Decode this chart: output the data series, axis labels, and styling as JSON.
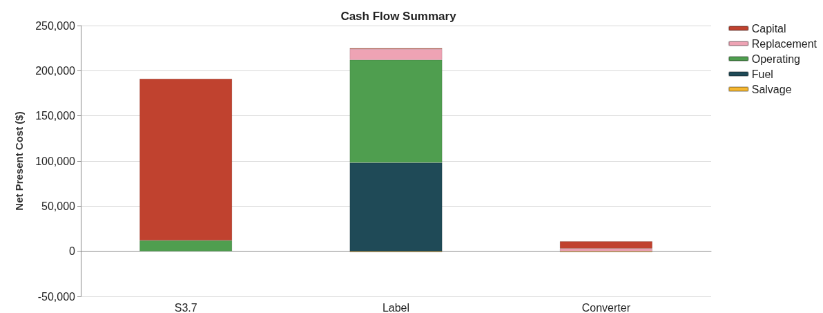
{
  "chart_data": {
    "type": "bar",
    "title": "Cash Flow Summary",
    "ylabel": "Net Present Cost ($)",
    "categories": [
      "S3.7",
      "Label",
      "Converter"
    ],
    "stacked": true,
    "series": [
      {
        "name": "Salvage",
        "color": "#f5b731",
        "values": [
          null,
          -1000,
          -1000
        ]
      },
      {
        "name": "Fuel",
        "color": "#1f4a57",
        "values": [
          null,
          98000,
          null
        ]
      },
      {
        "name": "Operating",
        "color": "#4f9e4f",
        "values": [
          12000,
          114000,
          null
        ]
      },
      {
        "name": "Replacement",
        "color": "#eea3b4",
        "values": [
          null,
          12000,
          3000
        ]
      },
      {
        "name": "Capital",
        "color": "#c0422f",
        "values": [
          179000,
          1000,
          8000
        ]
      }
    ],
    "ylim": [
      -50000,
      250000
    ],
    "yticks": [
      {
        "value": -50000,
        "label": "-50,000"
      },
      0,
      {
        "value": 50000,
        "label": "50,000"
      },
      {
        "value": 100000,
        "label": "100,000"
      },
      {
        "value": 150000,
        "label": "150,000"
      },
      {
        "value": 200000,
        "label": "200,000"
      },
      {
        "value": 250000,
        "label": "250,000"
      }
    ],
    "grid": "y",
    "legend": "top right"
  }
}
